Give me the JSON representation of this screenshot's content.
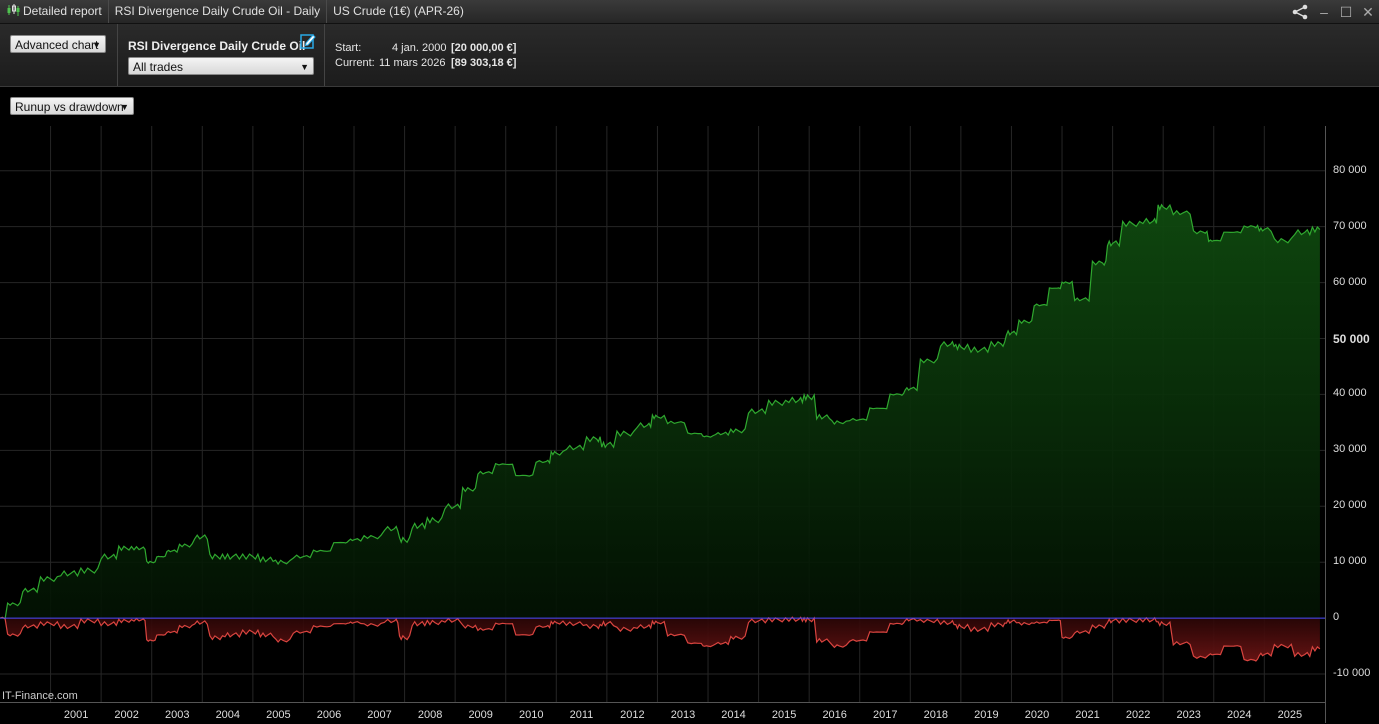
{
  "titlebar": {
    "tab1": "Detailed report",
    "tab2": "RSI Divergence Daily Crude Oil - Daily",
    "tab3": "US Crude (1€) (APR-26)"
  },
  "toolbar": {
    "chart_mode": "Advanced chart",
    "strategy_name": "RSI Divergence Daily Crude Oil",
    "trades_filter": "All trades",
    "start_label": "Start:",
    "start_date": "4 jan. 2000",
    "start_value": "[20 000,00 €]",
    "current_label": "Current:",
    "current_date": "11 mars 2026",
    "current_value": "[89 303,18 €]"
  },
  "view_selector": "Runup vs drawdown",
  "brand": "IT-Finance.com",
  "colors": {
    "runup": "#2fa82f",
    "drawdown": "#d9443f",
    "zero_line": "#4b4bff",
    "grid": "#262626"
  },
  "chart_data": {
    "type": "area",
    "y_axis_ticks": [
      "80 000",
      "70 000",
      "60 000",
      "50 000",
      "40 000",
      "30 000",
      "20 000",
      "10 000",
      "0",
      "-10 000"
    ],
    "ylim": [
      -15000,
      88000
    ],
    "x_axis_ticks": [
      "2001",
      "2002",
      "2003",
      "2004",
      "2005",
      "2006",
      "2007",
      "2008",
      "2009",
      "2010",
      "2011",
      "2012",
      "2013",
      "2014",
      "2015",
      "2016",
      "2017",
      "2018",
      "2019",
      "2020",
      "2021",
      "2022",
      "2023",
      "2024",
      "2025"
    ],
    "xlim": [
      2000.0,
      2026.2
    ],
    "series": [
      {
        "key": "runup",
        "x": [
          2000.0,
          2000.3,
          2000.6,
          2001.0,
          2001.4,
          2001.8,
          2002.2,
          2002.5,
          2002.8,
          2003.0,
          2003.2,
          2003.4,
          2003.7,
          2004.0,
          2004.3,
          2004.6,
          2005.0,
          2005.3,
          2005.6,
          2006.0,
          2006.4,
          2006.8,
          2007.0,
          2007.4,
          2007.8,
          2008.0,
          2008.3,
          2008.6,
          2009.0,
          2009.3,
          2009.6,
          2010.0,
          2010.4,
          2010.8,
          2011.0,
          2011.4,
          2011.8,
          2012.0,
          2012.4,
          2012.8,
          2013.0,
          2013.4,
          2013.8,
          2014.0,
          2014.3,
          2014.6,
          2015.0,
          2015.4,
          2015.8,
          2016.0,
          2016.3,
          2016.6,
          2017.0,
          2017.4,
          2017.8,
          2018.0,
          2018.4,
          2018.8,
          2019.0,
          2019.4,
          2019.8,
          2020.0,
          2020.3,
          2020.6,
          2020.9,
          2021.1,
          2021.4,
          2021.8,
          2022.0,
          2022.4,
          2022.8,
          2023.0,
          2023.4,
          2023.8,
          2024.0,
          2024.4,
          2024.8,
          2025.0,
          2025.4,
          2025.8,
          2026.1
        ],
        "values": [
          0,
          2500,
          5000,
          7000,
          8000,
          8500,
          11000,
          12500,
          12500,
          10000,
          11000,
          12000,
          13000,
          14500,
          11000,
          11000,
          11000,
          10500,
          10000,
          11000,
          12000,
          13500,
          14000,
          14500,
          16000,
          14000,
          16500,
          17500,
          20000,
          23000,
          26000,
          27500,
          25500,
          28000,
          29500,
          30500,
          32000,
          31000,
          33000,
          34500,
          36000,
          35000,
          33000,
          32500,
          33000,
          33500,
          37000,
          38500,
          39000,
          39500,
          36000,
          35000,
          35500,
          37500,
          40000,
          41000,
          46000,
          49000,
          48500,
          48000,
          49000,
          51000,
          53000,
          56000,
          59000,
          60000,
          57000,
          63500,
          67000,
          70500,
          71000,
          73500,
          72500,
          69000,
          67500,
          69000,
          70000,
          69500,
          67500,
          69000,
          69500
        ]
      },
      {
        "key": "drawdown",
        "x": [
          2000.0,
          2000.3,
          2000.6,
          2001.0,
          2001.4,
          2001.8,
          2002.2,
          2002.5,
          2002.8,
          2003.0,
          2003.2,
          2003.4,
          2003.7,
          2004.0,
          2004.3,
          2004.6,
          2005.0,
          2005.3,
          2005.6,
          2006.0,
          2006.4,
          2006.8,
          2007.0,
          2007.4,
          2007.8,
          2008.0,
          2008.3,
          2008.6,
          2009.0,
          2009.3,
          2009.6,
          2010.0,
          2010.4,
          2010.8,
          2011.0,
          2011.4,
          2011.8,
          2012.0,
          2012.4,
          2012.8,
          2013.0,
          2013.4,
          2013.8,
          2014.0,
          2014.3,
          2014.6,
          2015.0,
          2015.4,
          2015.8,
          2016.0,
          2016.3,
          2016.6,
          2017.0,
          2017.4,
          2017.8,
          2018.0,
          2018.4,
          2018.8,
          2019.0,
          2019.4,
          2019.8,
          2020.0,
          2020.3,
          2020.6,
          2020.9,
          2021.1,
          2021.4,
          2021.8,
          2022.0,
          2022.4,
          2022.8,
          2023.0,
          2023.4,
          2023.8,
          2024.0,
          2024.4,
          2024.8,
          2025.0,
          2025.4,
          2025.8,
          2026.1
        ],
        "values": [
          0,
          -3000,
          -1500,
          -1000,
          -1500,
          -500,
          -1000,
          -500,
          -300,
          -4000,
          -3000,
          -2500,
          -1500,
          -800,
          -3500,
          -3000,
          -2500,
          -3000,
          -4000,
          -2500,
          -1500,
          -1000,
          -800,
          -1200,
          -500,
          -3500,
          -1000,
          -800,
          -400,
          -1500,
          -2000,
          -1000,
          -3000,
          -1500,
          -800,
          -1000,
          -1500,
          -1000,
          -2000,
          -1500,
          -800,
          -3000,
          -4500,
          -5000,
          -4500,
          -3500,
          -500,
          -300,
          -200,
          -300,
          -4000,
          -5000,
          -4000,
          -2500,
          -1000,
          -300,
          -500,
          -800,
          -1500,
          -2000,
          -1200,
          -600,
          -1000,
          -800,
          -400,
          -3500,
          -2500,
          -1500,
          -500,
          -400,
          -300,
          -1000,
          -4500,
          -7000,
          -6500,
          -5000,
          -7500,
          -6500,
          -5000,
          -6500,
          -5500
        ]
      }
    ]
  }
}
